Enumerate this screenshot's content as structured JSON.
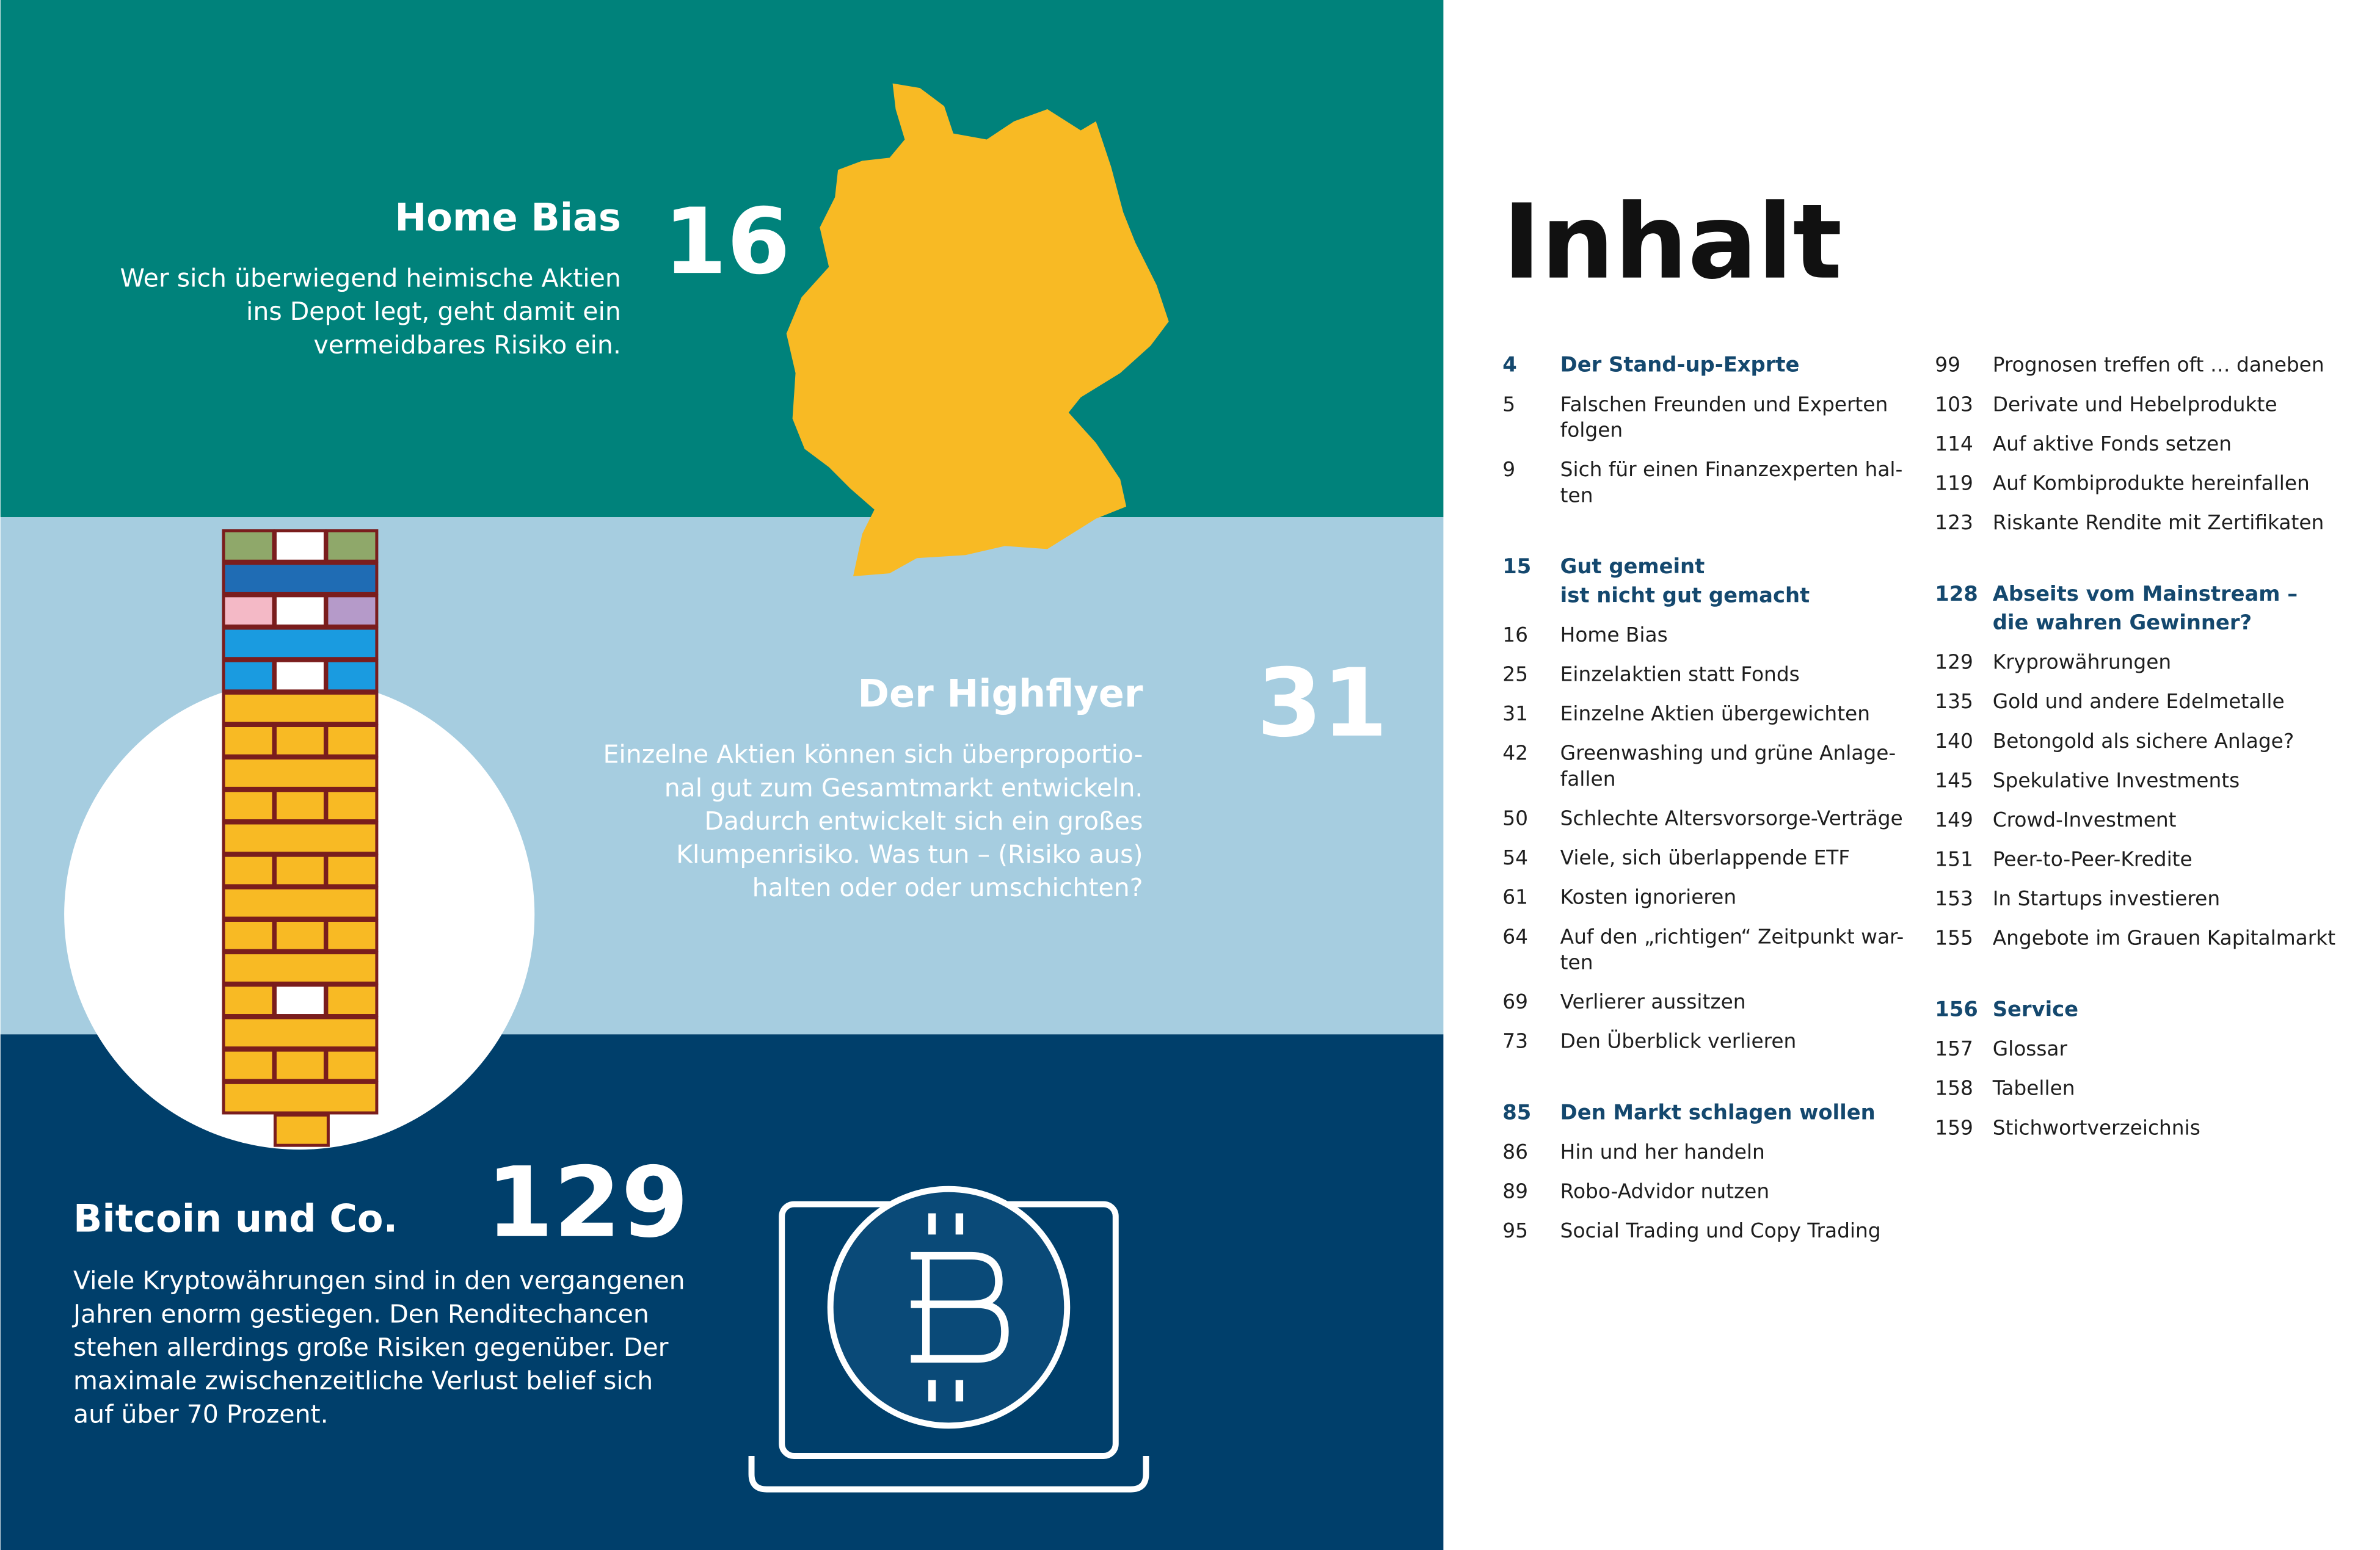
{
  "panels": [
    {
      "title": "Home Bias",
      "page": 16,
      "lines": [
        "Wer sich überwiegend heimische Aktien",
        "ins Depot legt, geht damit ein",
        "vermeidbares Risiko ein."
      ]
    },
    {
      "title": "Der Highflyer",
      "page": 31,
      "lines": [
        "Einzelne Aktien können sich überproportio-",
        "nal gut zum Gesamtmarkt entwickeln.",
        "Dadurch entwickelt sich ein großes",
        "Klumpenrisiko. Was tun – (Risiko aus)",
        "halten oder oder umschichten?"
      ]
    },
    {
      "title": "Bitcoin und Co.",
      "page": 129,
      "lines": [
        "Viele Kryptowährungen sind in den vergangenen",
        "Jahren enorm gestiegen. Den Renditechancen",
        "stehen allerdings große Risiken gegenüber. Der",
        "maximale zwischenzeitliche Verlust belief sich",
        "auf über 70 Prozent."
      ]
    }
  ],
  "toc": {
    "title": "Inhalt",
    "columns": [
      [
        {
          "page": 4,
          "title": [
            "Der Stand-up-Exprte"
          ],
          "entries": [
            {
              "page": 5,
              "title": [
                "Falschen Freunden und Experten",
                "folgen"
              ]
            },
            {
              "page": 9,
              "title": [
                "Sich für einen Finanzexperten hal-",
                "ten"
              ]
            }
          ]
        },
        {
          "page": 15,
          "title": [
            "Gut gemeint",
            "ist nicht gut gemacht"
          ],
          "entries": [
            {
              "page": 16,
              "title": [
                "Home Bias"
              ]
            },
            {
              "page": 25,
              "title": [
                "Einzelaktien statt Fonds"
              ]
            },
            {
              "page": 31,
              "title": [
                "Einzelne Aktien übergewichten"
              ]
            },
            {
              "page": 42,
              "title": [
                "Greenwashing und grüne Anlage-",
                "fallen"
              ]
            },
            {
              "page": 50,
              "title": [
                "Schlechte Altersvorsorge-Verträge"
              ]
            },
            {
              "page": 54,
              "title": [
                "Viele, sich überlappende ETF"
              ]
            },
            {
              "page": 61,
              "title": [
                "Kosten ignorieren"
              ]
            },
            {
              "page": 64,
              "title": [
                "Auf den „richtigen“ Zeitpunkt war-",
                "ten"
              ]
            },
            {
              "page": 69,
              "title": [
                "Verlierer aussitzen"
              ]
            },
            {
              "page": 73,
              "title": [
                "Den Überblick verlieren"
              ]
            }
          ]
        },
        {
          "page": 85,
          "title": [
            "Den Markt schlagen wollen"
          ],
          "entries": [
            {
              "page": 86,
              "title": [
                "Hin und her handeln"
              ]
            },
            {
              "page": 89,
              "title": [
                "Robo-Advidor nutzen"
              ]
            },
            {
              "page": 95,
              "title": [
                "Social Trading und Copy Trading"
              ]
            }
          ]
        }
      ],
      [
        {
          "entries": [
            {
              "page": 99,
              "title": [
                "Prognosen treffen oft … daneben"
              ]
            },
            {
              "page": 103,
              "title": [
                "Derivate und Hebelprodukte"
              ]
            },
            {
              "page": 114,
              "title": [
                "Auf aktive Fonds setzen"
              ]
            },
            {
              "page": 119,
              "title": [
                "Auf Kombiprodukte hereinfallen"
              ]
            },
            {
              "page": 123,
              "title": [
                "Riskante Rendite mit Zertifikaten"
              ]
            }
          ]
        },
        {
          "page": 128,
          "title": [
            "Abseits vom Mainstream –",
            "die wahren Gewinner?"
          ],
          "entries": [
            {
              "page": 129,
              "title": [
                "Kryprowährungen"
              ]
            },
            {
              "page": 135,
              "title": [
                "Gold und andere Edelmetalle"
              ]
            },
            {
              "page": 140,
              "title": [
                "Betongold als sichere Anlage?"
              ]
            },
            {
              "page": 145,
              "title": [
                "Spekulative Investments"
              ]
            },
            {
              "page": 149,
              "title": [
                "Crowd-Investment"
              ]
            },
            {
              "page": 151,
              "title": [
                "Peer-to-Peer-Kredite"
              ]
            },
            {
              "page": 153,
              "title": [
                "In Startups investieren"
              ]
            },
            {
              "page": 155,
              "title": [
                "Angebote im Grauen Kapitalmarkt"
              ]
            }
          ]
        },
        {
          "page": 156,
          "title": [
            "Service"
          ],
          "entries": [
            {
              "page": 157,
              "title": [
                "Glossar"
              ]
            },
            {
              "page": 158,
              "title": [
                "Tabellen"
              ]
            },
            {
              "page": 159,
              "title": [
                "Stichwortverzeichnis"
              ]
            }
          ]
        }
      ]
    ]
  }
}
